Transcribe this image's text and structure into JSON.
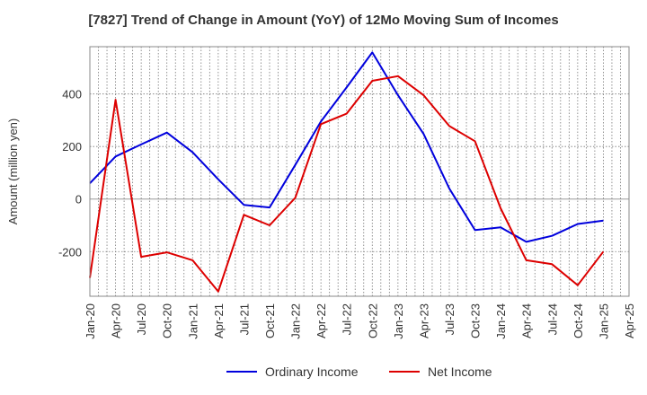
{
  "chart_data": {
    "type": "line",
    "title": "[7827]  Trend of Change in Amount (YoY) of 12Mo Moving Sum of Incomes",
    "xlabel": "",
    "ylabel": "Amount (million yen)",
    "x": [
      "Jan-20",
      "Apr-20",
      "Jul-20",
      "Oct-20",
      "Jan-21",
      "Apr-21",
      "Jul-21",
      "Oct-21",
      "Jan-22",
      "Apr-22",
      "Jul-22",
      "Oct-22",
      "Jan-23",
      "Apr-23",
      "Jul-23",
      "Oct-23",
      "Jan-24",
      "Apr-24",
      "Jul-24",
      "Oct-24",
      "Jan-25",
      "Apr-25"
    ],
    "x_tick_labels": [
      "Jan-20",
      "Apr-20",
      "Jul-20",
      "Oct-20",
      "Jan-21",
      "Apr-21",
      "Jul-21",
      "Oct-21",
      "Jan-22",
      "Apr-22",
      "Jul-22",
      "Oct-22",
      "Jan-23",
      "Apr-23",
      "Jul-23",
      "Oct-23",
      "Jan-24",
      "Apr-24",
      "Jul-24",
      "Oct-24",
      "Jan-25",
      "Apr-25"
    ],
    "y_ticks": [
      400,
      200,
      0,
      -200
    ],
    "y_tick_labels": [
      "400",
      "200",
      "0",
      "-200"
    ],
    "ylim": [
      -370,
      580
    ],
    "grid": true,
    "legend_position": "bottom",
    "series": [
      {
        "name": "Ordinary Income",
        "color": "#0000dd",
        "values": [
          60,
          162,
          208,
          253,
          178,
          75,
          -22,
          -32,
          130,
          295,
          425,
          558,
          395,
          248,
          40,
          -118,
          -108,
          -163,
          -140,
          -95,
          -82,
          null
        ]
      },
      {
        "name": "Net Income",
        "color": "#dd0000",
        "values": [
          -300,
          378,
          -220,
          -203,
          -233,
          -352,
          -60,
          -100,
          5,
          285,
          325,
          450,
          468,
          395,
          278,
          220,
          -35,
          -233,
          -248,
          -328,
          -200,
          null
        ]
      }
    ]
  }
}
